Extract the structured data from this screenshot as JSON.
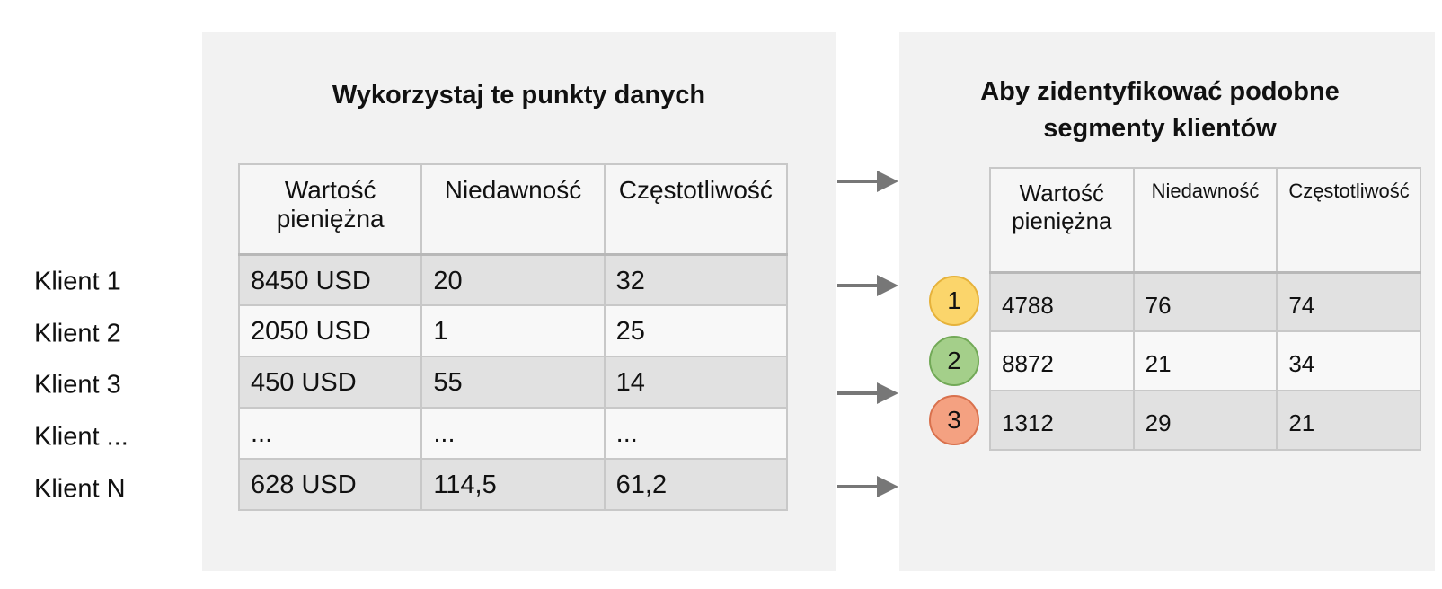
{
  "left": {
    "title": "Wykorzystaj te punkty danych",
    "headers": [
      "Wartość pieniężna",
      "Niedawność",
      "Częstotliwość"
    ],
    "row_labels": [
      "Klient 1",
      "Klient 2",
      "Klient 3",
      "Klient ...",
      "Klient N"
    ],
    "rows": [
      [
        "8450 USD",
        "20",
        "32"
      ],
      [
        "2050 USD",
        "1",
        "25"
      ],
      [
        "450 USD",
        "55",
        "14"
      ],
      [
        "...",
        "...",
        "..."
      ],
      [
        "628 USD",
        "114,5",
        "61,2"
      ]
    ]
  },
  "right": {
    "title": "Aby zidentyfikować podobne segmenty klientów",
    "headers": [
      "Wartość pieniężna",
      "Niedawność",
      "Częstotliwość"
    ],
    "segments": [
      "1",
      "2",
      "3"
    ],
    "rows": [
      [
        "4788",
        "76",
        "74"
      ],
      [
        "8872",
        "21",
        "34"
      ],
      [
        "1312",
        "29",
        "21"
      ]
    ]
  }
}
